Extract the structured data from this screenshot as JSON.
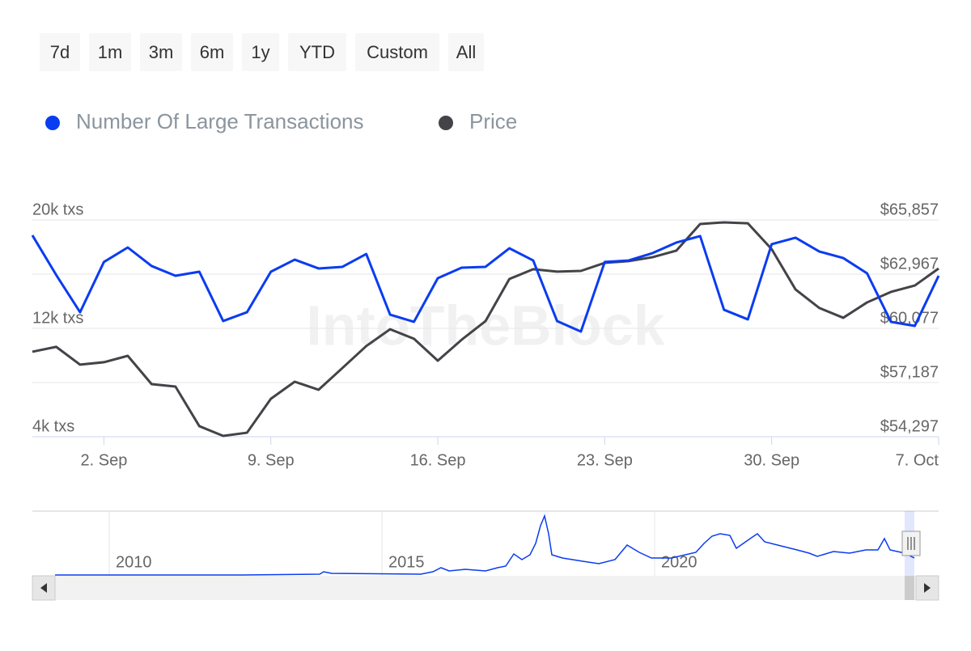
{
  "range_buttons": [
    "7d",
    "1m",
    "3m",
    "6m",
    "1y",
    "YTD",
    "Custom",
    "All"
  ],
  "watermark": "IntoTheBlock",
  "navigator": {
    "labels": [
      "2010",
      "2015",
      "2020"
    ]
  },
  "chart_data": {
    "type": "line",
    "legend": "top-left",
    "grid": true,
    "categories": [
      null,
      null,
      null,
      "2. Sep",
      null,
      null,
      null,
      null,
      null,
      null,
      "9. Sep",
      null,
      null,
      null,
      null,
      null,
      null,
      "16. Sep",
      null,
      null,
      null,
      null,
      null,
      null,
      "23. Sep",
      null,
      null,
      null,
      null,
      null,
      null,
      "30. Sep",
      null,
      null,
      null,
      null,
      null,
      null,
      "7. Oct"
    ],
    "series": [
      {
        "name": "Number Of Large Transactions",
        "color": "#0a3cf0",
        "axis": "y",
        "values": [
          18870,
          15940,
          13190,
          16900,
          17970,
          16600,
          15880,
          16180,
          12540,
          13190,
          16180,
          17070,
          16420,
          16540,
          17490,
          13010,
          12480,
          15700,
          16480,
          16540,
          17910,
          17010,
          12540,
          11760,
          16900,
          17010,
          17550,
          18330,
          18810,
          13370,
          12660,
          18210,
          18690,
          17670,
          17190,
          16060,
          12480,
          12180,
          15880
        ]
      },
      {
        "name": "Price",
        "color": "#434348",
        "axis": "y2",
        "values": [
          58830,
          59090,
          58140,
          58270,
          58610,
          57100,
          56970,
          54860,
          54340,
          54510,
          56320,
          57230,
          56800,
          57960,
          59130,
          60030,
          59520,
          58350,
          59470,
          60460,
          62710,
          63230,
          63100,
          63140,
          63570,
          63660,
          63870,
          64220,
          65640,
          65730,
          65680,
          64300,
          62150,
          61160,
          60640,
          61460,
          62020,
          62360,
          63270
        ]
      }
    ],
    "ylim": [
      4000,
      20000
    ],
    "yticks": [
      {
        "value": 4000,
        "label": "4k txs"
      },
      {
        "value": 12000,
        "label": "12k txs"
      },
      {
        "value": 20000,
        "label": "20k txs"
      }
    ],
    "y2lim": [
      54297,
      65857
    ],
    "y2ticks": [
      {
        "value": 54297,
        "label": "$54,297"
      },
      {
        "value": 57187,
        "label": "$57,187"
      },
      {
        "value": 60077,
        "label": "$60,077"
      },
      {
        "value": 62967,
        "label": "$62,967"
      },
      {
        "value": 65857,
        "label": "$65,857"
      }
    ]
  }
}
